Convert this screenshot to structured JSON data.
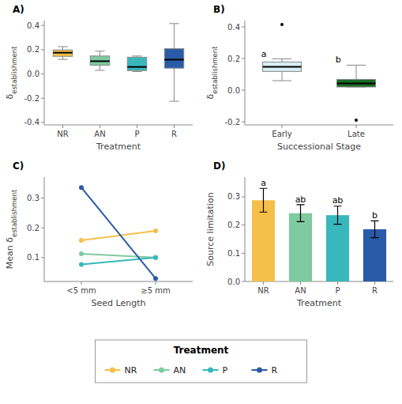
{
  "chart_data": [
    {
      "type": "box",
      "title": "A)",
      "xlabel": "Treatment",
      "ylabel": "δestablishment",
      "ylim": [
        -0.42,
        0.44
      ],
      "yticks": [
        -0.4,
        -0.2,
        {
          "value": 0,
          "label": "0.0"
        },
        0.2,
        0.4
      ],
      "grid": false,
      "categories": [
        "NR",
        "AN",
        "P",
        "R"
      ],
      "colors": [
        "#F5C04A",
        "#7ECBA1",
        "#38B8BC",
        "#2A5BA8"
      ],
      "boxes": [
        {
          "q1": 0.145,
          "median": 0.175,
          "q3": 0.198,
          "whislo": 0.12,
          "whishi": 0.225,
          "fliers": []
        },
        {
          "q1": 0.072,
          "median": 0.105,
          "q3": 0.148,
          "whislo": 0.03,
          "whishi": 0.188,
          "fliers": []
        },
        {
          "q1": 0.028,
          "median": 0.058,
          "q3": 0.138,
          "whislo": 0.02,
          "whishi": 0.148,
          "fliers": []
        },
        {
          "q1": 0.048,
          "median": 0.118,
          "q3": 0.208,
          "whislo": -0.225,
          "whishi": 0.415,
          "fliers": []
        }
      ]
    },
    {
      "type": "box",
      "title": "B)",
      "xlabel": "Successional Stage",
      "ylabel": "δestablishment",
      "ylim": [
        -0.22,
        0.44
      ],
      "yticks": [
        -0.2,
        {
          "value": 0,
          "label": "0.0"
        },
        0.2,
        0.4
      ],
      "grid": false,
      "categories": [
        "Early",
        "Late"
      ],
      "colors": [
        "#D8EEF5",
        "#1A6B25"
      ],
      "boxes": [
        {
          "q1": 0.118,
          "median": 0.148,
          "q3": 0.178,
          "whislo": 0.06,
          "whishi": 0.198,
          "fliers": [
            0.415
          ]
        },
        {
          "q1": 0.02,
          "median": 0.042,
          "q3": 0.068,
          "whislo": 0.02,
          "whishi": 0.158,
          "fliers": [
            -0.19
          ]
        }
      ],
      "annotations": [
        {
          "text": "a",
          "y": 0.2
        },
        {
          "text": "b",
          "y": 0.165
        }
      ]
    },
    {
      "type": "line",
      "title": "C)",
      "xlabel": "Seed Length",
      "ylabel": "Mean δestablishment",
      "ylim": [
        0.02,
        0.37
      ],
      "yticks": [
        0.1,
        0.2,
        0.3
      ],
      "grid": false,
      "categories": [
        "<5 mm",
        "≥5 mm"
      ],
      "series": [
        {
          "name": "NR",
          "color": "#F5C04A",
          "values": [
            0.158,
            0.19
          ]
        },
        {
          "name": "AN",
          "color": "#7ECBA1",
          "values": [
            0.113,
            0.1
          ]
        },
        {
          "name": "P",
          "color": "#38B8BC",
          "values": [
            0.077,
            0.1
          ]
        },
        {
          "name": "R",
          "color": "#2A5BA8",
          "values": [
            0.335,
            0.03
          ]
        }
      ],
      "marker": "circle",
      "legend": "bottom",
      "legend_title": "Treatment"
    },
    {
      "type": "bar",
      "title": "D)",
      "xlabel": "Treatment",
      "ylabel": "Source limitation",
      "ylim": [
        0.0,
        0.37
      ],
      "yticks": [
        {
          "value": 0,
          "label": "0.0"
        },
        0.1,
        0.2,
        0.3
      ],
      "grid": false,
      "categories": [
        "NR",
        "AN",
        "P",
        "R"
      ],
      "colors": [
        "#F5C04A",
        "#7ECBA1",
        "#38B8BC",
        "#2A5BA8"
      ],
      "values": [
        0.288,
        0.242,
        0.235,
        0.185
      ],
      "errors": [
        0.042,
        0.03,
        0.032,
        0.03
      ],
      "annotations": [
        {
          "text": "a",
          "y": 0.334
        },
        {
          "text": "ab",
          "y": 0.276
        },
        {
          "text": "ab",
          "y": 0.271
        },
        {
          "text": "b",
          "y": 0.219
        }
      ]
    }
  ]
}
